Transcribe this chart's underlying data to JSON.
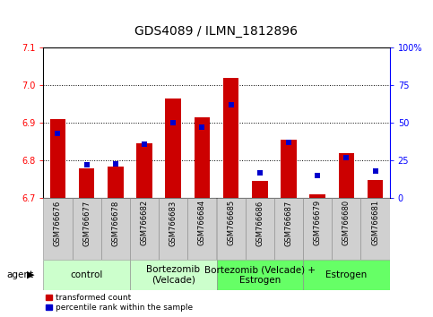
{
  "title": "GDS4089 / ILMN_1812896",
  "samples": [
    "GSM766676",
    "GSM766677",
    "GSM766678",
    "GSM766682",
    "GSM766683",
    "GSM766684",
    "GSM766685",
    "GSM766686",
    "GSM766687",
    "GSM766679",
    "GSM766680",
    "GSM766681"
  ],
  "bar_values": [
    6.91,
    6.78,
    6.785,
    6.845,
    6.965,
    6.915,
    7.02,
    6.745,
    6.855,
    6.71,
    6.82,
    6.748
  ],
  "percentile_values": [
    43,
    22,
    23,
    36,
    50,
    47,
    62,
    17,
    37,
    15,
    27,
    18
  ],
  "bar_bottom": 6.7,
  "ylim_left": [
    6.7,
    7.1
  ],
  "ylim_right": [
    0,
    100
  ],
  "yticks_left": [
    6.7,
    6.8,
    6.9,
    7.0,
    7.1
  ],
  "yticks_right": [
    0,
    25,
    50,
    75,
    100
  ],
  "ytick_labels_right": [
    "0",
    "25",
    "50",
    "75",
    "100%"
  ],
  "bar_color": "#cc0000",
  "marker_color": "#0000cc",
  "groups": [
    {
      "label": "control",
      "start": 0,
      "end": 3,
      "color": "#ccffcc"
    },
    {
      "label": "Bortezomib\n(Velcade)",
      "start": 3,
      "end": 6,
      "color": "#ccffcc"
    },
    {
      "label": "Bortezomib (Velcade) +\nEstrogen",
      "start": 6,
      "end": 9,
      "color": "#66ff66"
    },
    {
      "label": "Estrogen",
      "start": 9,
      "end": 12,
      "color": "#66ff66"
    }
  ],
  "agent_label": "agent",
  "legend_red": "transformed count",
  "legend_blue": "percentile rank within the sample",
  "bar_width": 0.55,
  "marker_size": 5,
  "title_fontsize": 10,
  "tick_fontsize": 7,
  "xlabel_fontsize": 6,
  "group_fontsize": 7.5
}
